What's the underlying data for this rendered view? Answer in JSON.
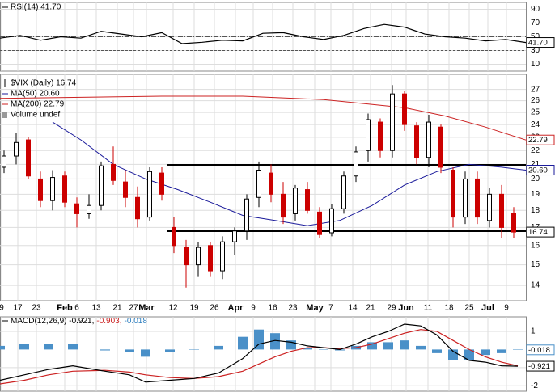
{
  "chart_data": [
    {
      "type": "line",
      "title": "RSI(14) 41.70",
      "ylim": [
        0,
        100
      ],
      "yticks": [
        90,
        70,
        50,
        30,
        10
      ],
      "levels": [
        70,
        50,
        30
      ],
      "grid": true,
      "series": [
        {
          "color": "#000000",
          "x": [
            0,
            5,
            10,
            15,
            20,
            25,
            30,
            35,
            40,
            45,
            50,
            55,
            60,
            65,
            70,
            75,
            80,
            85,
            90,
            95,
            100,
            105,
            110,
            115,
            120,
            125,
            130
          ],
          "values": [
            48,
            52,
            45,
            50,
            48,
            58,
            54,
            50,
            56,
            40,
            42,
            45,
            44,
            55,
            56,
            50,
            46,
            52,
            62,
            68,
            64,
            54,
            50,
            48,
            44,
            46,
            41.7
          ],
          "last": {
            "value": 41.7,
            "label": "41.70"
          }
        }
      ]
    },
    {
      "type": "candlestick",
      "name": "$VIX (Daily) 16.74",
      "log_scale": true,
      "grid": true,
      "ylim": [
        13.3,
        28.4
      ],
      "yticks": [
        14,
        15,
        16,
        17,
        18,
        19,
        20,
        21,
        22,
        23,
        24,
        25,
        26,
        27
      ],
      "xlim": [
        0,
        130
      ],
      "xticks": [
        {
          "value": 0.4,
          "label": "9"
        },
        {
          "value": 4.4,
          "label": "17"
        },
        {
          "value": 9,
          "label": "23"
        },
        {
          "value": 16,
          "label": "Feb"
        },
        {
          "value": 19,
          "label": "6"
        },
        {
          "value": 23.8,
          "label": "13"
        },
        {
          "value": 29,
          "label": "21"
        },
        {
          "value": 33,
          "label": "27"
        },
        {
          "value": 36.2,
          "label": "Mar"
        },
        {
          "value": 42.8,
          "label": "12"
        },
        {
          "value": 48,
          "label": "19"
        },
        {
          "value": 53,
          "label": "26"
        },
        {
          "value": 58.2,
          "label": "Apr"
        },
        {
          "value": 62.6,
          "label": "9"
        },
        {
          "value": 67.4,
          "label": "16"
        },
        {
          "value": 72.4,
          "label": "23"
        },
        {
          "value": 77.8,
          "label": "May"
        },
        {
          "value": 81.8,
          "label": "7"
        },
        {
          "value": 87.2,
          "label": "14"
        },
        {
          "value": 91.6,
          "label": "21"
        },
        {
          "value": 96.8,
          "label": "29"
        },
        {
          "value": 100.4,
          "label": "Jun"
        },
        {
          "value": 105.8,
          "label": "11"
        },
        {
          "value": 111,
          "label": "18"
        },
        {
          "value": 116,
          "label": "25"
        },
        {
          "value": 120.6,
          "label": "Jul"
        },
        {
          "value": 125.2,
          "label": "9"
        }
      ],
      "up_color": "#ffffff",
      "down_color": "#cc0000",
      "x": [
        1,
        4,
        7,
        10,
        13,
        16,
        19,
        22,
        25,
        28,
        31,
        34,
        37,
        40,
        43,
        46,
        49,
        52,
        55,
        58,
        61,
        64,
        67,
        70,
        73,
        76,
        79,
        82,
        85,
        88,
        91,
        94,
        97,
        100,
        103,
        106,
        109,
        112,
        115,
        118,
        121,
        124,
        127
      ],
      "open": [
        20.8,
        21.6,
        22.8,
        20.0,
        18.6,
        20.2,
        18.4,
        17.8,
        18.3,
        21.0,
        19.8,
        18.8,
        17.6,
        20.4,
        17.0,
        15.9,
        15.0,
        16.0,
        14.7,
        16.2,
        16.8,
        18.8,
        20.4,
        19.0,
        17.8,
        19.3,
        17.9,
        16.7,
        18.1,
        20.2,
        22.0,
        24.2,
        22.0,
        26.6,
        23.9,
        21.5,
        23.8,
        20.6,
        17.6,
        20.0,
        17.4,
        19.0,
        17.8
      ],
      "high": [
        22.0,
        23.3,
        23.0,
        20.5,
        20.6,
        20.5,
        18.8,
        19.0,
        21.2,
        22.3,
        20.6,
        19.5,
        20.8,
        20.8,
        17.6,
        16.3,
        16.2,
        16.2,
        16.5,
        17.0,
        19.0,
        21.2,
        21.0,
        19.8,
        19.6,
        19.8,
        18.2,
        18.4,
        20.5,
        22.3,
        24.9,
        24.5,
        27.4,
        26.9,
        24.2,
        24.8,
        24.0,
        20.8,
        20.5,
        20.5,
        19.4,
        19.6,
        18.2
      ],
      "low": [
        20.4,
        21.0,
        20.0,
        18.2,
        18.0,
        18.2,
        17.0,
        17.5,
        18.0,
        19.6,
        18.2,
        17.0,
        17.4,
        18.6,
        15.6,
        13.9,
        14.4,
        14.4,
        14.3,
        15.5,
        16.3,
        18.2,
        18.5,
        17.2,
        17.4,
        17.8,
        16.4,
        16.5,
        17.8,
        19.8,
        21.2,
        21.5,
        21.5,
        23.5,
        21.0,
        20.8,
        20.4,
        17.0,
        17.2,
        17.2,
        17.0,
        16.4,
        16.4
      ],
      "close": [
        21.6,
        22.6,
        20.2,
        18.6,
        20.1,
        18.5,
        17.8,
        18.3,
        20.9,
        19.9,
        18.8,
        17.5,
        20.5,
        19.0,
        16.0,
        15.0,
        15.9,
        14.7,
        16.2,
        16.8,
        18.7,
        20.6,
        19.0,
        17.6,
        19.4,
        18.0,
        16.6,
        18.1,
        20.2,
        21.9,
        24.4,
        22.0,
        26.6,
        24.0,
        21.5,
        24.2,
        20.8,
        17.6,
        20.0,
        17.6,
        19.0,
        17.0,
        16.74
      ],
      "last": {
        "value": 16.74,
        "label": "16.74"
      },
      "hlines": [
        {
          "value": 20.95,
          "from": 41.4
        },
        {
          "value": 16.8,
          "from": 41.4
        }
      ],
      "series": [
        {
          "name": "MA(50) 20.60",
          "color": "#1a1a9a",
          "x": [
            13,
            20,
            28,
            36,
            44,
            52,
            60,
            68,
            76,
            84,
            92,
            100,
            108,
            116,
            124,
            130
          ],
          "values": [
            24.2,
            22.8,
            21.0,
            20.0,
            19.3,
            18.5,
            17.7,
            17.4,
            17.1,
            17.4,
            18.3,
            19.6,
            20.5,
            21.0,
            20.8,
            20.6
          ],
          "last": {
            "value": 20.6,
            "label": "20.60"
          }
        },
        {
          "name": "MA(200) 22.79",
          "color": "#cc2222",
          "x": [
            0,
            20,
            40,
            60,
            80,
            100,
            110,
            120,
            130
          ],
          "values": [
            26.2,
            26.3,
            26.4,
            26.4,
            26.1,
            25.4,
            24.7,
            23.8,
            22.79
          ],
          "last": {
            "value": 22.79,
            "label": "22.79"
          }
        }
      ],
      "legend_extra": "Volume undef"
    },
    {
      "type": "line",
      "ylim": [
        -2.3,
        1.8
      ],
      "yticks": [
        1,
        -1,
        -2
      ],
      "grid": true,
      "legend": [
        {
          "text": "MACD(12,26,9) -0.921,",
          "color": "#000000"
        },
        {
          "text": "-0.903,",
          "color": "#cc2222"
        },
        {
          "text": "-0.018",
          "color": "#2f7fbf"
        }
      ],
      "series": [
        {
          "style": "bar",
          "color": "#4a90c8",
          "x": [
            0,
            6,
            12,
            18,
            26,
            32,
            36,
            42,
            48,
            54,
            60,
            64,
            68,
            72,
            76,
            80,
            84,
            88,
            92,
            96,
            100,
            104,
            108,
            112,
            116,
            120,
            124,
            128
          ],
          "values": [
            0.2,
            0.3,
            0.3,
            0.3,
            -0.05,
            -0.15,
            -0.4,
            -0.15,
            0,
            0.2,
            0.7,
            1.1,
            0.9,
            0.5,
            0.1,
            0,
            -0.05,
            0.2,
            0.4,
            0.4,
            0.5,
            0.2,
            -0.2,
            -0.6,
            -0.6,
            -0.3,
            -0.2,
            -0.018
          ],
          "last": {
            "value": -0.018,
            "label": "-0.018"
          }
        },
        {
          "color": "#cc2222",
          "x": [
            0,
            6,
            12,
            18,
            26,
            32,
            36,
            42,
            48,
            54,
            60,
            64,
            68,
            72,
            76,
            80,
            84,
            88,
            92,
            96,
            100,
            104,
            108,
            112,
            116,
            120,
            124,
            128
          ],
          "values": [
            -1.9,
            -1.7,
            -1.4,
            -1.2,
            -1.15,
            -1.25,
            -1.4,
            -1.55,
            -1.6,
            -1.5,
            -1.2,
            -0.8,
            -0.4,
            -0.1,
            0.1,
            0.1,
            0.05,
            0.1,
            0.3,
            0.6,
            0.9,
            1.1,
            1.0,
            0.5,
            0.0,
            -0.4,
            -0.7,
            -0.903
          ]
        },
        {
          "color": "#000000",
          "x": [
            0,
            6,
            12,
            18,
            26,
            32,
            36,
            42,
            48,
            54,
            60,
            64,
            68,
            72,
            76,
            80,
            84,
            88,
            92,
            96,
            100,
            104,
            108,
            112,
            116,
            120,
            124,
            128
          ],
          "values": [
            -1.7,
            -1.4,
            -1.1,
            -0.9,
            -1.2,
            -1.4,
            -1.8,
            -1.7,
            -1.6,
            -1.3,
            -0.5,
            0.3,
            0.5,
            0.4,
            0.2,
            0.1,
            0.0,
            0.3,
            0.7,
            1.0,
            1.4,
            1.3,
            0.8,
            -0.1,
            -0.6,
            -0.7,
            -0.9,
            -0.921
          ],
          "last": {
            "value": -0.921,
            "label": "-0.921"
          }
        }
      ]
    }
  ]
}
